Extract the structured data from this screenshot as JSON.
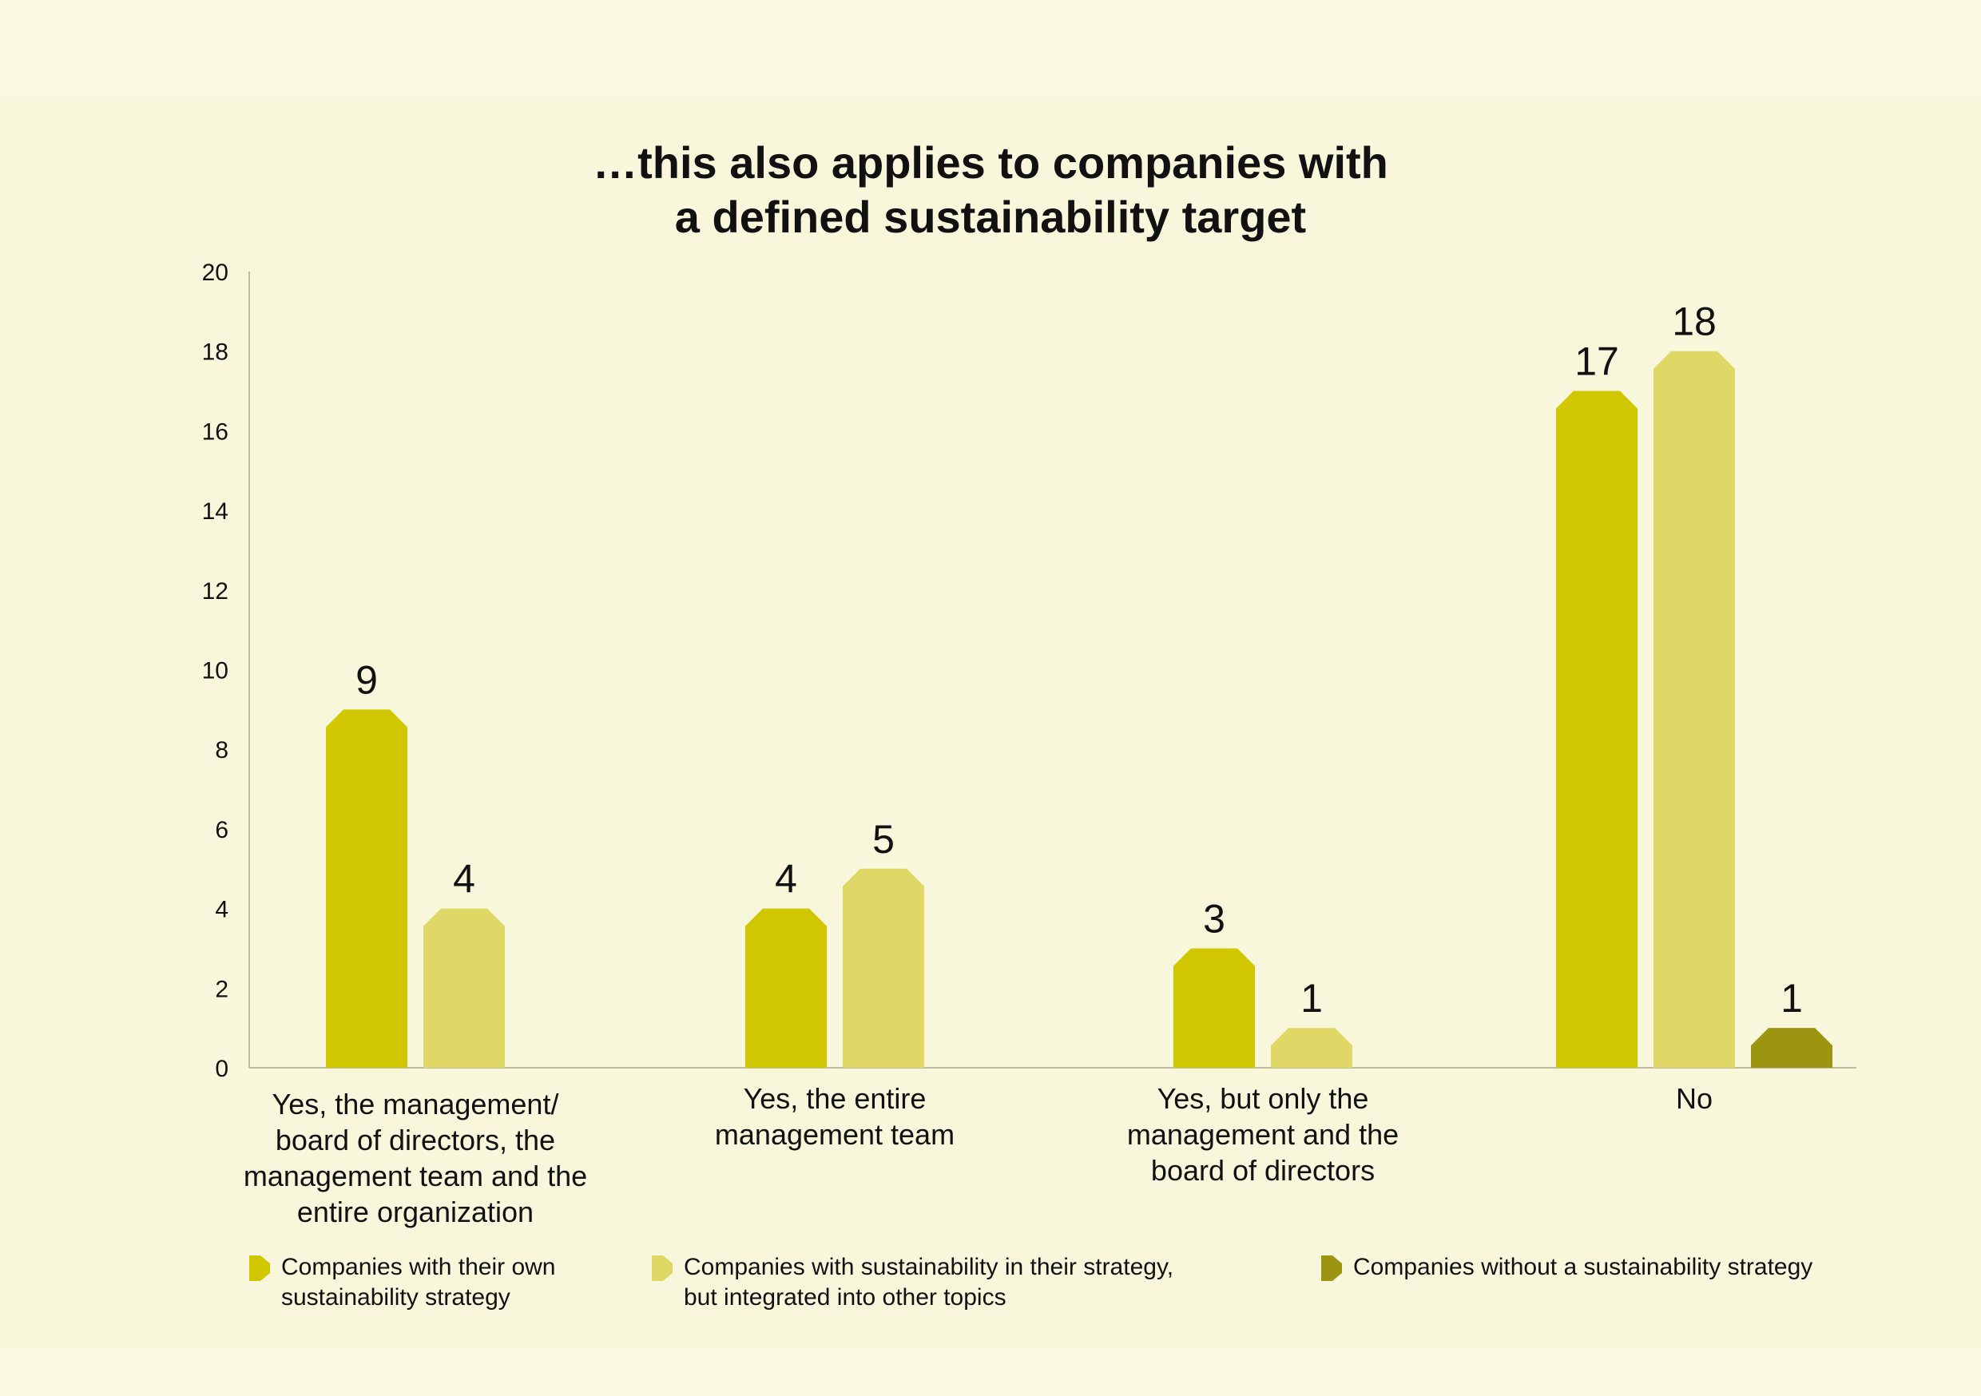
{
  "chart_data": {
    "type": "bar",
    "title": [
      "…this also applies to companies with",
      "a defined sustainability target"
    ],
    "xlabel": "",
    "ylabel": "",
    "ylim": [
      0,
      20
    ],
    "yticks": [
      "0",
      "2",
      "4",
      "6",
      "8",
      "10",
      "12",
      "14",
      "16",
      "18",
      "20"
    ],
    "grid": false,
    "legend_position": "bottom",
    "categories": [
      {
        "lines": [
          "Yes, the management/",
          "board of directors, the",
          "management team and the",
          "entire organization"
        ]
      },
      {
        "lines": [
          "Yes, the entire",
          "management team"
        ]
      },
      {
        "lines": [
          "Yes, but only the",
          "management and the",
          "board of directors"
        ]
      },
      {
        "lines": [
          "No"
        ]
      }
    ],
    "series": [
      {
        "name_lines": [
          "Companies with their own",
          "sustainability strategy"
        ],
        "color": "#d1c700",
        "values": [
          9,
          4,
          3,
          17
        ],
        "value_labels": [
          "9",
          "4",
          "3",
          "17"
        ]
      },
      {
        "name_lines": [
          "Companies with sustainability in their strategy,",
          "but integrated into other topics"
        ],
        "color": "#e0d866",
        "values": [
          4,
          5,
          1,
          18
        ],
        "value_labels": [
          "4",
          "5",
          "1",
          "18"
        ]
      },
      {
        "name_lines": [
          "Companies without a sustainability strategy"
        ],
        "color": "#9c9512",
        "values": [
          null,
          null,
          null,
          1
        ],
        "value_labels": [
          "",
          "",
          "",
          "1"
        ]
      }
    ]
  }
}
